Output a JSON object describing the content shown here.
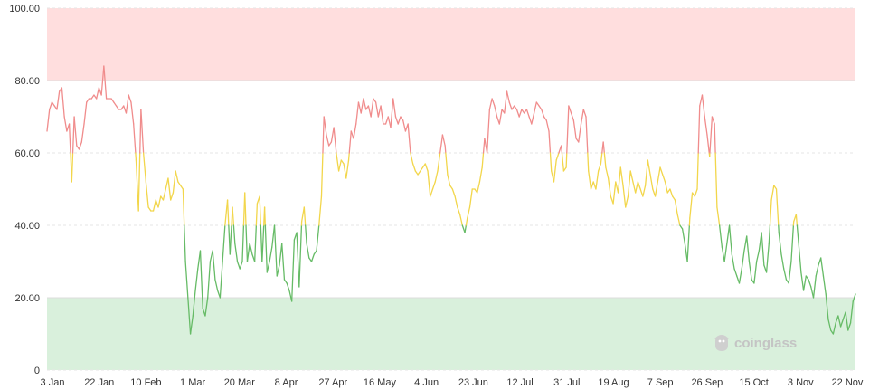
{
  "chart_data": {
    "type": "line",
    "title": "",
    "xlabel": "",
    "ylabel": "",
    "ylim": [
      0,
      100
    ],
    "y_ticks": [
      "0",
      "20.00",
      "40.00",
      "60.00",
      "80.00",
      "100.00"
    ],
    "x_ticks": [
      "3 Jan",
      "22 Jan",
      "10 Feb",
      "1 Mar",
      "20 Mar",
      "8 Apr",
      "27 Apr",
      "16 May",
      "4 Jun",
      "23 Jun",
      "12 Jul",
      "31 Jul",
      "19 Aug",
      "7 Sep",
      "26 Sep",
      "15 Oct",
      "3 Nov",
      "22 Nov"
    ],
    "zones": [
      {
        "from": 80,
        "to": 100,
        "color": "#ffdede"
      },
      {
        "from": 0,
        "to": 20,
        "color": "#d9f0dc"
      }
    ],
    "colors": {
      "high": "#f08c8c",
      "mid": "#f2d64b",
      "low": "#66bb66",
      "grid": "#e6e6e6",
      "zone_line": "#dddddd"
    },
    "thresholds": {
      "upper": 60,
      "lower": 40
    },
    "grid": true,
    "x_start": 0,
    "x_step": 1,
    "series": [
      {
        "values": [
          66,
          72,
          74,
          73,
          72,
          77,
          78,
          70,
          66,
          68,
          52,
          70,
          62,
          61,
          63,
          68,
          74,
          75,
          75,
          76,
          75,
          78,
          76,
          84,
          75,
          75,
          75,
          74,
          73,
          72,
          72,
          73,
          71,
          76,
          74,
          68,
          58,
          44,
          72,
          60,
          52,
          45,
          44,
          44,
          47,
          45,
          48,
          47,
          50,
          53,
          47,
          49,
          55,
          52,
          51,
          50,
          30,
          20,
          10,
          15,
          22,
          28,
          33,
          17,
          15,
          20,
          30,
          33,
          25,
          22,
          20,
          30,
          40,
          47,
          32,
          45,
          35,
          30,
          28,
          30,
          49,
          30,
          35,
          32,
          30,
          46,
          48,
          30,
          45,
          27,
          30,
          34,
          40,
          26,
          29,
          35,
          25,
          24,
          22,
          19,
          36,
          38,
          23,
          41,
          45,
          35,
          31,
          30,
          32,
          33,
          40,
          48,
          70,
          65,
          62,
          63,
          67,
          60,
          55,
          58,
          57,
          53,
          58,
          66,
          64,
          68,
          74,
          71,
          75,
          72,
          73,
          70,
          75,
          74,
          70,
          73,
          68,
          68,
          70,
          67,
          75,
          70,
          68,
          70,
          69,
          66,
          68,
          60,
          57,
          55,
          54,
          55,
          56,
          57,
          55,
          48,
          50,
          52,
          55,
          60,
          65,
          62,
          54,
          51,
          50,
          48,
          45,
          43,
          40,
          38,
          42,
          45,
          50,
          50,
          49,
          52,
          56,
          64,
          60,
          72,
          75,
          73,
          70,
          68,
          72,
          71,
          77,
          74,
          72,
          73,
          72,
          70,
          72,
          71,
          72,
          70,
          68,
          71,
          74,
          73,
          72,
          70,
          69,
          66,
          55,
          52,
          58,
          60,
          62,
          55,
          56,
          73,
          71,
          69,
          64,
          63,
          68,
          72,
          70,
          55,
          50,
          52,
          50,
          55,
          57,
          63,
          56,
          53,
          48,
          46,
          52,
          49,
          56,
          51,
          45,
          48,
          55,
          52,
          49,
          52,
          50,
          48,
          51,
          58,
          54,
          50,
          48,
          52,
          56,
          54,
          52,
          49,
          50,
          48,
          47,
          43,
          40,
          39,
          35,
          30,
          42,
          49,
          48,
          50,
          73,
          76,
          70,
          65,
          59,
          70,
          68,
          45,
          40,
          34,
          30,
          35,
          40,
          32,
          28,
          26,
          24,
          28,
          33,
          37,
          30,
          25,
          24,
          30,
          33,
          38,
          29,
          27,
          35,
          47,
          51,
          50,
          38,
          32,
          28,
          25,
          24,
          30,
          41,
          43,
          35,
          27,
          22,
          26,
          25,
          23,
          20,
          26,
          29,
          31,
          26,
          21,
          14,
          11,
          10,
          13,
          15,
          12,
          14,
          16,
          11,
          13,
          19,
          21
        ]
      }
    ]
  },
  "watermark": {
    "text": "coinglass",
    "icon": "coinglass-logo-icon"
  }
}
